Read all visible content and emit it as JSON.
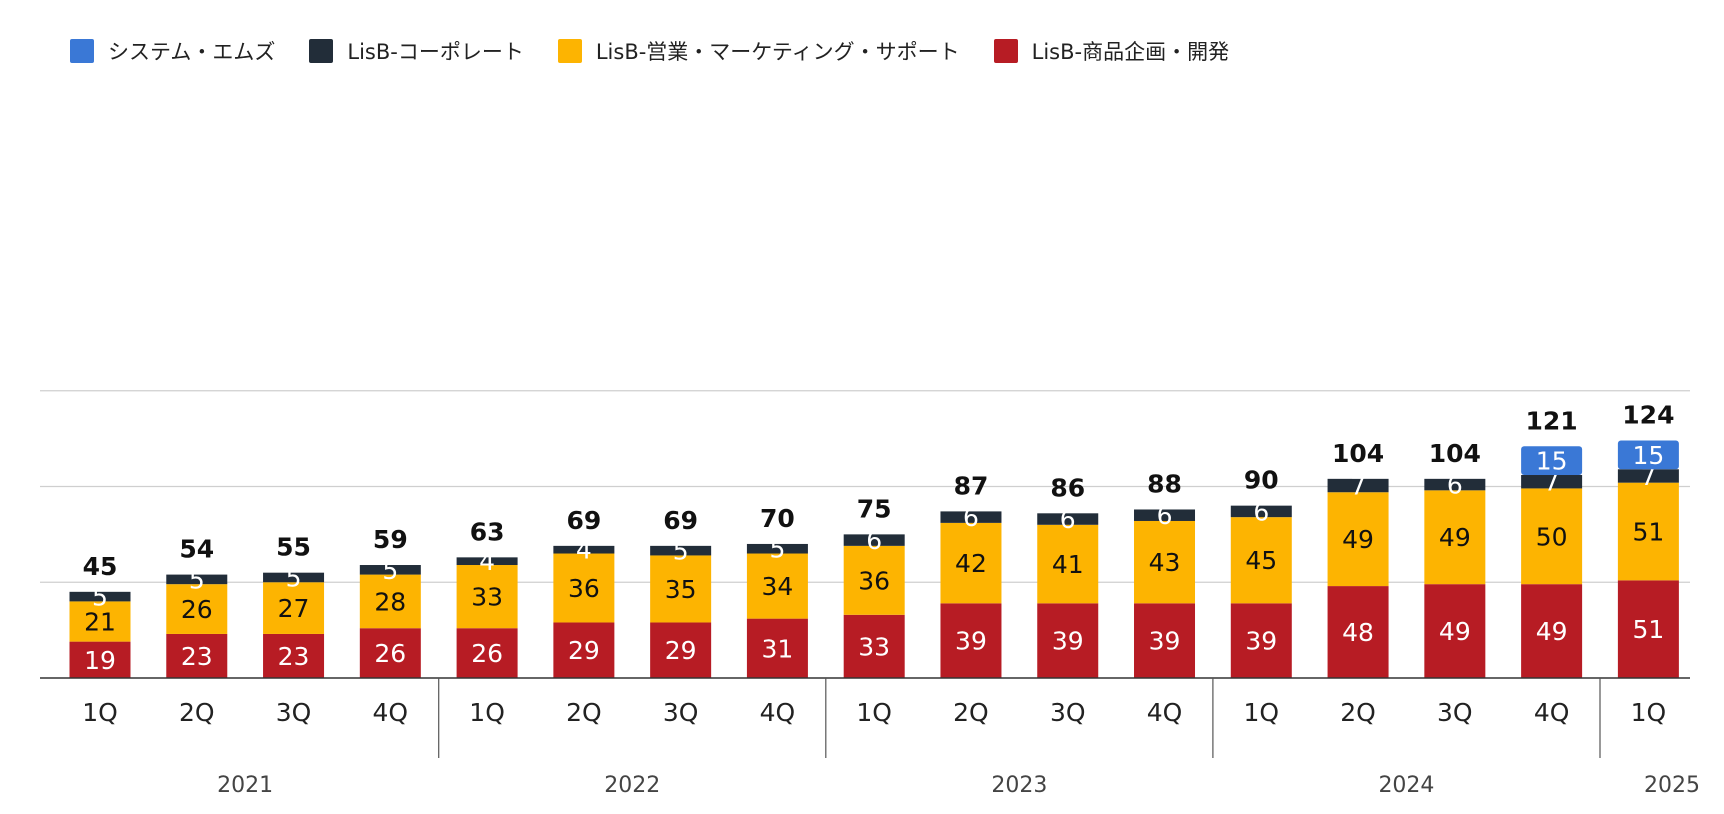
{
  "legend": [
    {
      "name": "システム・エムズ",
      "color": "#3a78d6"
    },
    {
      "name": "LisB-コーポレート",
      "color": "#222d39"
    },
    {
      "name": "LisB-営業・マーケティング・サポート",
      "color": "#fdb401"
    },
    {
      "name": "LisB-商品企画・開発",
      "color": "#b71c24"
    }
  ],
  "chart_data": {
    "type": "bar",
    "stacked": true,
    "grid": true,
    "legend_position": "top-left",
    "categories": [
      "1Q",
      "2Q",
      "3Q",
      "4Q",
      "1Q",
      "2Q",
      "3Q",
      "4Q",
      "1Q",
      "2Q",
      "3Q",
      "4Q",
      "1Q",
      "2Q",
      "3Q",
      "4Q",
      "1Q"
    ],
    "years": [
      {
        "label": "2021",
        "count": 4
      },
      {
        "label": "2022",
        "count": 4
      },
      {
        "label": "2023",
        "count": 4
      },
      {
        "label": "2024",
        "count": 4
      },
      {
        "label": "2025",
        "count": 1
      }
    ],
    "series": [
      {
        "name": "LisB-商品企画・開発",
        "color": "#b71c24",
        "label_color": "#ffffff",
        "values": [
          19,
          23,
          23,
          26,
          26,
          29,
          29,
          31,
          33,
          39,
          39,
          39,
          39,
          48,
          49,
          49,
          51
        ]
      },
      {
        "name": "LisB-営業・マーケティング・サポート",
        "color": "#fdb401",
        "label_color": "#111111",
        "values": [
          21,
          26,
          27,
          28,
          33,
          36,
          35,
          34,
          36,
          42,
          41,
          43,
          45,
          49,
          49,
          50,
          51
        ]
      },
      {
        "name": "LisB-コーポレート",
        "color": "#222d39",
        "label_color": "#ffffff",
        "values": [
          5,
          5,
          5,
          5,
          4,
          4,
          5,
          5,
          6,
          6,
          6,
          6,
          6,
          7,
          6,
          7,
          7
        ]
      },
      {
        "name": "システム・エムズ",
        "color": "#3a78d6",
        "label_color": "#ffffff",
        "values": [
          0,
          0,
          0,
          0,
          0,
          0,
          0,
          0,
          0,
          0,
          0,
          0,
          0,
          0,
          0,
          15,
          15
        ]
      }
    ],
    "totals": [
      45,
      54,
      55,
      59,
      63,
      69,
      69,
      70,
      75,
      87,
      86,
      88,
      90,
      104,
      104,
      121,
      124
    ],
    "ylim": [
      0,
      150
    ],
    "gridlines": [
      50,
      100,
      150
    ]
  }
}
